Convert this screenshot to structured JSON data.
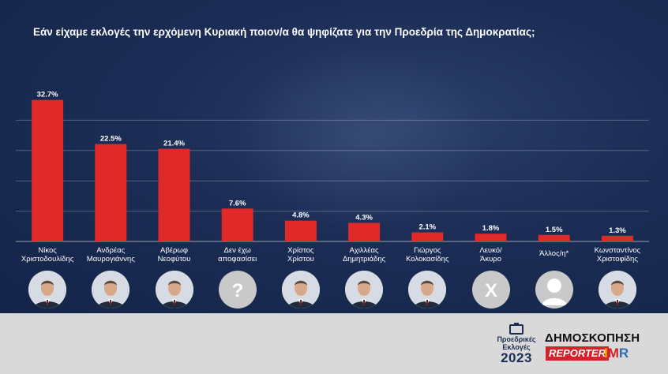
{
  "title": "Εάν είχαμε εκλογές την ερχόμενη Κυριακή ποιον/α θα ψηφίζατε για την Προεδρία της Δημοκρατίας;",
  "colors": {
    "bar": "#e02a2a",
    "background": "#1b2d55",
    "footer": "#d9d9d9",
    "text": "#ffffff"
  },
  "chart_data": {
    "type": "bar",
    "title": "Εάν είχαμε εκλογές την ερχόμενη Κυριακή ποιον/α θα ψηφίζατε για την Προεδρία της Δημοκρατίας;",
    "categories": [
      [
        "Νίκος",
        "Χριστοδουλίδης"
      ],
      [
        "Ανδρέας",
        "Μαυρογιάννης"
      ],
      [
        "Αβέρωφ",
        "Νεοφύτου"
      ],
      [
        "Δεν έχω",
        "αποφασίσει"
      ],
      [
        "Χρίστος",
        "Χρίστου"
      ],
      [
        "Αχιλλέας",
        "Δημητριάδης"
      ],
      [
        "Γιώργος",
        "Κολοκασίδης"
      ],
      [
        "Λευκό/",
        "Άκυρο"
      ],
      [
        "Άλλος/η*"
      ],
      [
        "Κωνσταντίνος",
        "Χριστοφίδης"
      ]
    ],
    "values": [
      32.7,
      22.5,
      21.4,
      7.6,
      4.8,
      4.3,
      2.1,
      1.8,
      1.5,
      1.3
    ],
    "value_labels": [
      "32.7%",
      "22.5%",
      "21.4%",
      "7.6%",
      "4.8%",
      "4.3%",
      "2.1%",
      "1.8%",
      "1.5%",
      "1.3%"
    ],
    "ylim": [
      0,
      35
    ],
    "grid": true,
    "xlabel": "",
    "ylabel": ""
  },
  "avatars": [
    {
      "kind": "photo",
      "icon": "person-photo-icon"
    },
    {
      "kind": "photo",
      "icon": "person-photo-icon"
    },
    {
      "kind": "photo",
      "icon": "person-photo-icon"
    },
    {
      "kind": "symbol",
      "symbol": "?",
      "icon": "question-mark-icon"
    },
    {
      "kind": "photo",
      "icon": "person-photo-icon"
    },
    {
      "kind": "photo",
      "icon": "person-photo-icon"
    },
    {
      "kind": "photo",
      "icon": "person-photo-icon"
    },
    {
      "kind": "symbol",
      "symbol": "X",
      "icon": "x-mark-icon"
    },
    {
      "kind": "silhouette",
      "icon": "person-silhouette-icon"
    },
    {
      "kind": "photo",
      "icon": "person-photo-icon"
    }
  ],
  "footer": {
    "logo_line1": "Προεδρικές",
    "logo_line2": "Εκλογές",
    "logo_year": "2023",
    "poll_word": "ΔΗΜΟΣΚΟΠΗΣΗ",
    "reporter": "REPORTER",
    "imr_i": "I",
    "imr_m": "M",
    "imr_r": "R"
  }
}
